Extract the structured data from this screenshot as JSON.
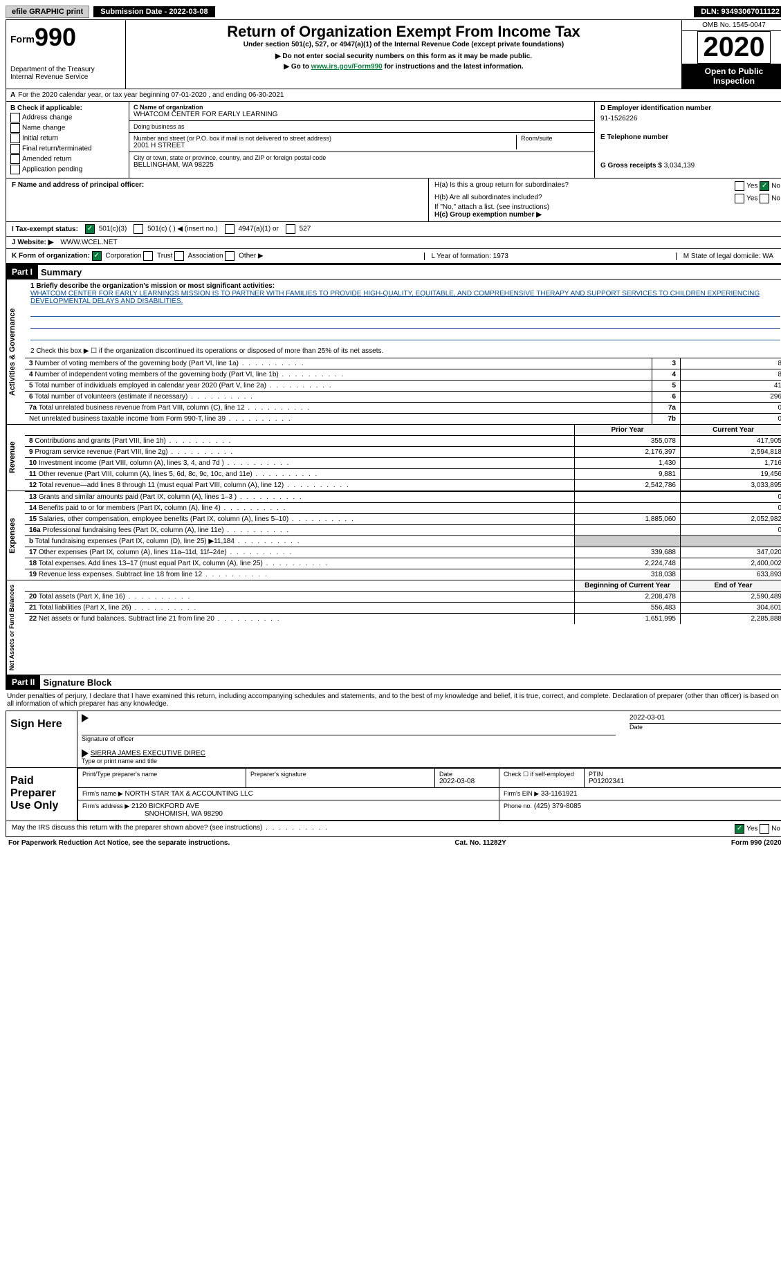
{
  "topbar": {
    "efile": "efile GRAPHIC print",
    "submission_label": "Submission Date - 2022-03-08",
    "dln_label": "DLN: 93493067011122"
  },
  "header": {
    "form_prefix": "Form",
    "form_number": "990",
    "dept": "Department of the Treasury",
    "irs": "Internal Revenue Service",
    "title": "Return of Organization Exempt From Income Tax",
    "subtitle": "Under section 501(c), 527, or 4947(a)(1) of the Internal Revenue Code (except private foundations)",
    "note1": "▶ Do not enter social security numbers on this form as it may be made public.",
    "note2_pre": "▶ Go to ",
    "note2_link": "www.irs.gov/Form990",
    "note2_post": " for instructions and the latest information.",
    "omb": "OMB No. 1545-0047",
    "year": "2020",
    "inspection": "Open to Public Inspection"
  },
  "period": "For the 2020 calendar year, or tax year beginning 07-01-2020   , and ending 06-30-2021",
  "box_b": {
    "label": "B Check if applicable:",
    "opts": [
      "Address change",
      "Name change",
      "Initial return",
      "Final return/terminated",
      "Amended return",
      "Application pending"
    ]
  },
  "box_c": {
    "name_label": "C Name of organization",
    "name": "WHATCOM CENTER FOR EARLY LEARNING",
    "dba_label": "Doing business as",
    "dba": "",
    "addr_label": "Number and street (or P.O. box if mail is not delivered to street address)",
    "room_label": "Room/suite",
    "addr": "2001 H STREET",
    "city_label": "City or town, state or province, country, and ZIP or foreign postal code",
    "city": "BELLINGHAM, WA  98225"
  },
  "box_d": {
    "label": "D Employer identification number",
    "value": "91-1526226",
    "phone_label": "E Telephone number",
    "phone": "",
    "gross_label": "G Gross receipts $",
    "gross": "3,034,139"
  },
  "box_f": {
    "label": "F  Name and address of principal officer:",
    "value": ""
  },
  "box_h": {
    "ha_label": "H(a)  Is this a group return for subordinates?",
    "ha_yes": "Yes",
    "ha_no": "No",
    "hb_label": "H(b)  Are all subordinates included?",
    "hb_note": "If \"No,\" attach a list. (see instructions)",
    "hc_label": "H(c)  Group exemption number ▶"
  },
  "row_i": {
    "label": "I   Tax-exempt status:",
    "opt1": "501(c)(3)",
    "opt2": "501(c) (  ) ◀ (insert no.)",
    "opt3": "4947(a)(1) or",
    "opt4": "527"
  },
  "row_j": {
    "label": "J   Website: ▶",
    "value": "WWW.WCEL.NET"
  },
  "row_k": {
    "label": "K Form of organization:",
    "opts": [
      "Corporation",
      "Trust",
      "Association",
      "Other ▶"
    ]
  },
  "row_lm": {
    "l": "L Year of formation: 1973",
    "m": "M State of legal domicile: WA"
  },
  "part1": {
    "header": "Part I",
    "title": "Summary",
    "line1_label": "1   Briefly describe the organization's mission or most significant activities:",
    "mission": "WHATCOM CENTER FOR EARLY LEARNINGS MISSION IS TO PARTNER WITH FAMILIES TO PROVIDE HIGH-QUALITY, EQUITABLE, AND COMPREHENSIVE THERAPY AND SUPPORT SERVICES TO CHILDREN EXPERIENCING DEVELOPMENTAL DELAYS AND DISABILITIES.",
    "line2": "2   Check this box ▶ ☐  if the organization discontinued its operations or disposed of more than 25% of its net assets.",
    "governance": [
      {
        "n": "3",
        "t": "Number of voting members of the governing body (Part VI, line 1a)",
        "k": "3",
        "v": "8"
      },
      {
        "n": "4",
        "t": "Number of independent voting members of the governing body (Part VI, line 1b)",
        "k": "4",
        "v": "8"
      },
      {
        "n": "5",
        "t": "Total number of individuals employed in calendar year 2020 (Part V, line 2a)",
        "k": "5",
        "v": "41"
      },
      {
        "n": "6",
        "t": "Total number of volunteers (estimate if necessary)",
        "k": "6",
        "v": "296"
      },
      {
        "n": "7a",
        "t": "Total unrelated business revenue from Part VIII, column (C), line 12",
        "k": "7a",
        "v": "0"
      },
      {
        "n": "",
        "t": "Net unrelated business taxable income from Form 990-T, line 39",
        "k": "7b",
        "v": "0"
      }
    ],
    "col_prior": "Prior Year",
    "col_current": "Current Year",
    "revenue": [
      {
        "n": "8",
        "t": "Contributions and grants (Part VIII, line 1h)",
        "p": "355,078",
        "c": "417,905"
      },
      {
        "n": "9",
        "t": "Program service revenue (Part VIII, line 2g)",
        "p": "2,176,397",
        "c": "2,594,818"
      },
      {
        "n": "10",
        "t": "Investment income (Part VIII, column (A), lines 3, 4, and 7d )",
        "p": "1,430",
        "c": "1,716"
      },
      {
        "n": "11",
        "t": "Other revenue (Part VIII, column (A), lines 5, 6d, 8c, 9c, 10c, and 11e)",
        "p": "9,881",
        "c": "19,456"
      },
      {
        "n": "12",
        "t": "Total revenue—add lines 8 through 11 (must equal Part VIII, column (A), line 12)",
        "p": "2,542,786",
        "c": "3,033,895"
      }
    ],
    "expenses": [
      {
        "n": "13",
        "t": "Grants and similar amounts paid (Part IX, column (A), lines 1–3 )",
        "p": "",
        "c": "0"
      },
      {
        "n": "14",
        "t": "Benefits paid to or for members (Part IX, column (A), line 4)",
        "p": "",
        "c": "0"
      },
      {
        "n": "15",
        "t": "Salaries, other compensation, employee benefits (Part IX, column (A), lines 5–10)",
        "p": "1,885,060",
        "c": "2,052,982"
      },
      {
        "n": "16a",
        "t": "Professional fundraising fees (Part IX, column (A), line 11e)",
        "p": "",
        "c": "0"
      },
      {
        "n": "b",
        "t": "Total fundraising expenses (Part IX, column (D), line 25) ▶11,184",
        "p": "gray",
        "c": "gray"
      },
      {
        "n": "17",
        "t": "Other expenses (Part IX, column (A), lines 11a–11d, 11f–24e)",
        "p": "339,688",
        "c": "347,020"
      },
      {
        "n": "18",
        "t": "Total expenses. Add lines 13–17 (must equal Part IX, column (A), line 25)",
        "p": "2,224,748",
        "c": "2,400,002"
      },
      {
        "n": "19",
        "t": "Revenue less expenses. Subtract line 18 from line 12",
        "p": "318,038",
        "c": "633,893"
      }
    ],
    "col_begin": "Beginning of Current Year",
    "col_end": "End of Year",
    "netassets": [
      {
        "n": "20",
        "t": "Total assets (Part X, line 16)",
        "p": "2,208,478",
        "c": "2,590,489"
      },
      {
        "n": "21",
        "t": "Total liabilities (Part X, line 26)",
        "p": "556,483",
        "c": "304,601"
      },
      {
        "n": "22",
        "t": "Net assets or fund balances. Subtract line 21 from line 20",
        "p": "1,651,995",
        "c": "2,285,888"
      }
    ],
    "sidelabels": {
      "gov": "Activities & Governance",
      "rev": "Revenue",
      "exp": "Expenses",
      "net": "Net Assets or Fund Balances"
    }
  },
  "part2": {
    "header": "Part II",
    "title": "Signature Block",
    "declare": "Under penalties of perjury, I declare that I have examined this return, including accompanying schedules and statements, and to the best of my knowledge and belief, it is true, correct, and complete. Declaration of preparer (other than officer) is based on all information of which preparer has any knowledge.",
    "sign_here": "Sign Here",
    "sig_officer": "Signature of officer",
    "sig_date": "2022-03-01",
    "date_label": "Date",
    "name_title": "SIERRA JAMES  EXECUTIVE DIREC",
    "type_name": "Type or print name and title",
    "paid": "Paid Preparer Use Only",
    "prep_name_label": "Print/Type preparer's name",
    "prep_name": "",
    "prep_sig_label": "Preparer's signature",
    "prep_date_label": "Date",
    "prep_date": "2022-03-08",
    "check_self": "Check ☐ if self-employed",
    "ptin_label": "PTIN",
    "ptin": "P01202341",
    "firm_name_label": "Firm's name    ▶",
    "firm_name": "NORTH STAR TAX & ACCOUNTING LLC",
    "firm_ein_label": "Firm's EIN ▶",
    "firm_ein": "33-1161921",
    "firm_addr_label": "Firm's address ▶",
    "firm_addr1": "2120 BICKFORD AVE",
    "firm_addr2": "SNOHOMISH, WA  98290",
    "phone_label": "Phone no.",
    "phone": "(425) 379-8085",
    "discuss": "May the IRS discuss this return with the preparer shown above? (see instructions)",
    "yes": "Yes",
    "no": "No"
  },
  "footer": {
    "left": "For Paperwork Reduction Act Notice, see the separate instructions.",
    "mid": "Cat. No. 11282Y",
    "right": "Form 990 (2020)"
  }
}
